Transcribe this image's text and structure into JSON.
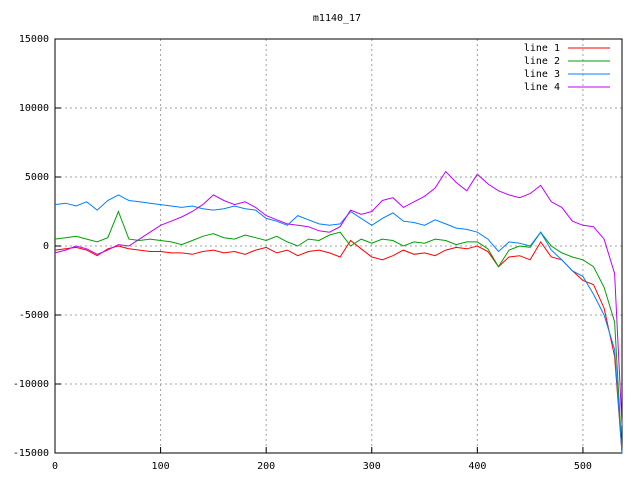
{
  "chart_data": {
    "type": "line",
    "title": "m1140_17",
    "x": [
      0,
      10,
      20,
      30,
      40,
      50,
      60,
      70,
      80,
      90,
      100,
      110,
      120,
      130,
      140,
      150,
      160,
      170,
      180,
      190,
      200,
      210,
      220,
      230,
      240,
      250,
      260,
      270,
      280,
      290,
      300,
      310,
      320,
      330,
      340,
      350,
      360,
      370,
      380,
      390,
      400,
      410,
      420,
      430,
      440,
      450,
      460,
      470,
      480,
      490,
      500,
      510,
      520,
      530,
      537
    ],
    "series": [
      {
        "name": "line 1",
        "color": "#ff0000",
        "values": [
          -300,
          -200,
          -100,
          -300,
          -700,
          -200,
          0,
          -200,
          -300,
          -400,
          -400,
          -500,
          -500,
          -600,
          -400,
          -300,
          -500,
          -400,
          -600,
          -300,
          -100,
          -500,
          -300,
          -700,
          -400,
          -300,
          -500,
          -800,
          400,
          -200,
          -800,
          -1000,
          -700,
          -300,
          -600,
          -500,
          -700,
          -300,
          -100,
          -200,
          0,
          -400,
          -1500,
          -800,
          -700,
          -1000,
          300,
          -800,
          -1000,
          -1800,
          -2500,
          -2800,
          -4500,
          -8000,
          -15000
        ]
      },
      {
        "name": "line 2",
        "color": "#00a000",
        "values": [
          500,
          600,
          700,
          500,
          300,
          600,
          2500,
          500,
          400,
          500,
          400,
          300,
          100,
          400,
          700,
          900,
          600,
          500,
          800,
          600,
          400,
          700,
          300,
          0,
          500,
          400,
          800,
          1000,
          0,
          500,
          200,
          500,
          400,
          0,
          300,
          200,
          500,
          400,
          100,
          300,
          300,
          -200,
          -1500,
          -300,
          0,
          -100,
          1000,
          0,
          -500,
          -800,
          -1000,
          -1500,
          -3000,
          -5500,
          -15000
        ]
      },
      {
        "name": "line 3",
        "color": "#0080ff",
        "values": [
          3000,
          3100,
          2900,
          3200,
          2600,
          3300,
          3700,
          3300,
          3200,
          3100,
          3000,
          2900,
          2800,
          2900,
          2700,
          2600,
          2700,
          2900,
          2700,
          2600,
          2000,
          1800,
          1500,
          2200,
          1900,
          1600,
          1500,
          1600,
          2500,
          2000,
          1500,
          2000,
          2400,
          1800,
          1700,
          1500,
          1900,
          1600,
          1300,
          1200,
          1000,
          500,
          -400,
          300,
          200,
          0,
          1000,
          -300,
          -1000,
          -1800,
          -2200,
          -3500,
          -5000,
          -7500,
          -15000
        ]
      },
      {
        "name": "line 4",
        "color": "#c000ff",
        "values": [
          -500,
          -300,
          0,
          -200,
          -600,
          -300,
          100,
          0,
          500,
          1000,
          1500,
          1800,
          2100,
          2500,
          3000,
          3700,
          3300,
          3000,
          3200,
          2800,
          2200,
          1900,
          1600,
          1500,
          1400,
          1100,
          1000,
          1400,
          2600,
          2300,
          2500,
          3300,
          3500,
          2800,
          3200,
          3600,
          4200,
          5400,
          4600,
          4000,
          5200,
          4500,
          4000,
          3700,
          3500,
          3800,
          4400,
          3200,
          2800,
          1800,
          1500,
          1400,
          500,
          -2000,
          -13000
        ]
      }
    ],
    "xlim": [
      0,
      537
    ],
    "ylim": [
      -15000,
      15000
    ],
    "xticks": [
      0,
      100,
      200,
      300,
      400,
      500
    ],
    "yticks": [
      -15000,
      -10000,
      -5000,
      0,
      5000,
      10000,
      15000
    ],
    "grid": true,
    "legend": "top-right"
  }
}
